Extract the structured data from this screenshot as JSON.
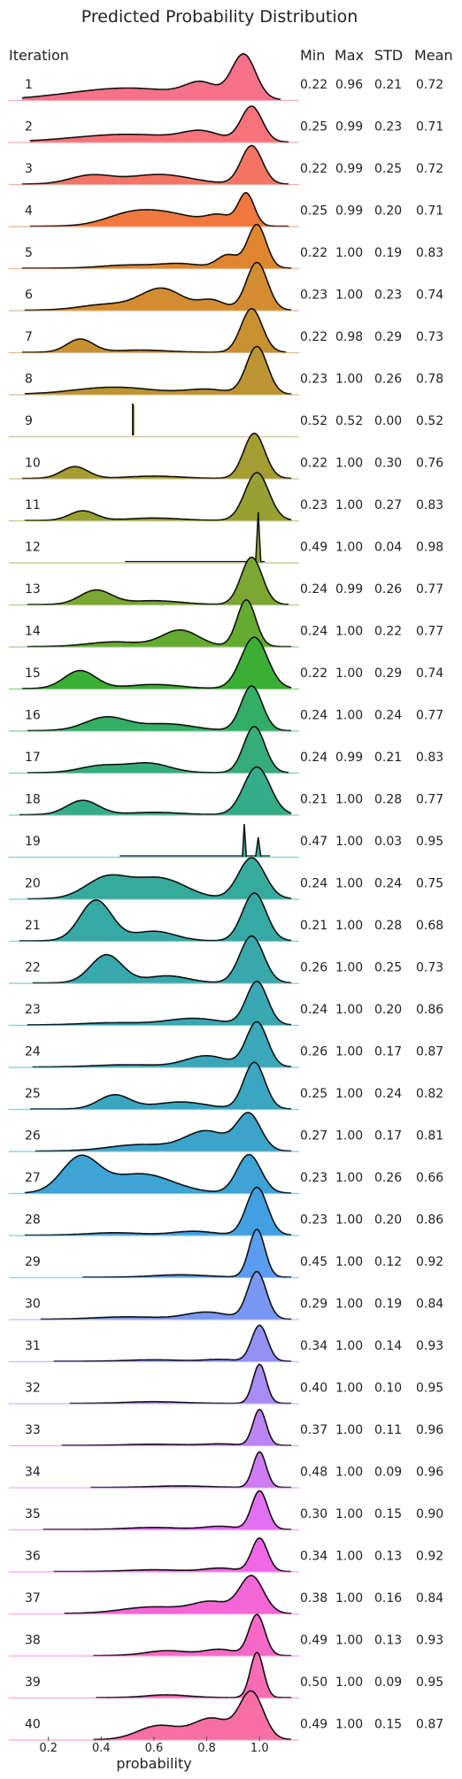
{
  "chart_data": {
    "type": "ridgeline",
    "title": "Predicted Probability Distribution",
    "xlabel": "probability",
    "xlim": [
      0.05,
      1.15
    ],
    "xticks": [
      0.2,
      0.4,
      0.6,
      0.8,
      1.0
    ],
    "xtick_labels": [
      "0.2",
      "0.4",
      "0.6",
      "0.8",
      "1.0"
    ],
    "row_header": "Iteration",
    "stat_columns": [
      "Min",
      "Max",
      "STD",
      "Mean"
    ],
    "rows": [
      {
        "label": "1",
        "min": "0.22",
        "max": "0.96",
        "std": "0.21",
        "mean": "0.72",
        "color": "#f77189"
      },
      {
        "label": "2",
        "min": "0.25",
        "max": "0.99",
        "std": "0.23",
        "mean": "0.71",
        "color": "#f67379"
      },
      {
        "label": "3",
        "min": "0.22",
        "max": "0.99",
        "std": "0.25",
        "mean": "0.72",
        "color": "#f47565"
      },
      {
        "label": "4",
        "min": "0.25",
        "max": "0.99",
        "std": "0.20",
        "mean": "0.71",
        "color": "#f0783f"
      },
      {
        "label": "5",
        "min": "0.22",
        "max": "1.00",
        "std": "0.19",
        "mean": "0.83",
        "color": "#e0852f"
      },
      {
        "label": "6",
        "min": "0.23",
        "max": "1.00",
        "std": "0.23",
        "mean": "0.74",
        "color": "#d38c32"
      },
      {
        "label": "7",
        "min": "0.22",
        "max": "0.98",
        "std": "0.29",
        "mean": "0.73",
        "color": "#c79132"
      },
      {
        "label": "8",
        "min": "0.23",
        "max": "1.00",
        "std": "0.26",
        "mean": "0.78",
        "color": "#bc9532"
      },
      {
        "label": "9",
        "min": "0.52",
        "max": "0.52",
        "std": "0.00",
        "mean": "0.52",
        "color": "#b19932"
      },
      {
        "label": "10",
        "min": "0.22",
        "max": "1.00",
        "std": "0.30",
        "mean": "0.76",
        "color": "#a59c32"
      },
      {
        "label": "11",
        "min": "0.23",
        "max": "1.00",
        "std": "0.27",
        "mean": "0.83",
        "color": "#99a032"
      },
      {
        "label": "12",
        "min": "0.49",
        "max": "1.00",
        "std": "0.04",
        "mean": "0.98",
        "color": "#8ca332"
      },
      {
        "label": "13",
        "min": "0.24",
        "max": "0.99",
        "std": "0.26",
        "mean": "0.77",
        "color": "#7ba732"
      },
      {
        "label": "14",
        "min": "0.24",
        "max": "1.00",
        "std": "0.22",
        "mean": "0.77",
        "color": "#64ab32"
      },
      {
        "label": "15",
        "min": "0.22",
        "max": "1.00",
        "std": "0.29",
        "mean": "0.74",
        "color": "#3aaf33"
      },
      {
        "label": "16",
        "min": "0.24",
        "max": "1.00",
        "std": "0.24",
        "mean": "0.77",
        "color": "#33ae66"
      },
      {
        "label": "17",
        "min": "0.24",
        "max": "0.99",
        "std": "0.21",
        "mean": "0.83",
        "color": "#34ad7b"
      },
      {
        "label": "18",
        "min": "0.21",
        "max": "1.00",
        "std": "0.28",
        "mean": "0.77",
        "color": "#35ac89"
      },
      {
        "label": "19",
        "min": "0.47",
        "max": "1.00",
        "std": "0.03",
        "mean": "0.95",
        "color": "#35ab94"
      },
      {
        "label": "20",
        "min": "0.24",
        "max": "1.00",
        "std": "0.24",
        "mean": "0.75",
        "color": "#36aa9d"
      },
      {
        "label": "21",
        "min": "0.21",
        "max": "1.00",
        "std": "0.28",
        "mean": "0.68",
        "color": "#37a9a5"
      },
      {
        "label": "22",
        "min": "0.26",
        "max": "1.00",
        "std": "0.25",
        "mean": "0.73",
        "color": "#38a8ac"
      },
      {
        "label": "23",
        "min": "0.24",
        "max": "1.00",
        "std": "0.20",
        "mean": "0.86",
        "color": "#39a8b3"
      },
      {
        "label": "24",
        "min": "0.26",
        "max": "1.00",
        "std": "0.17",
        "mean": "0.87",
        "color": "#3aa7ba"
      },
      {
        "label": "25",
        "min": "0.25",
        "max": "1.00",
        "std": "0.24",
        "mean": "0.82",
        "color": "#3ba6c2"
      },
      {
        "label": "26",
        "min": "0.27",
        "max": "1.00",
        "std": "0.17",
        "mean": "0.81",
        "color": "#3ca4ca"
      },
      {
        "label": "27",
        "min": "0.23",
        "max": "1.00",
        "std": "0.26",
        "mean": "0.66",
        "color": "#3ea3d5"
      },
      {
        "label": "28",
        "min": "0.23",
        "max": "1.00",
        "std": "0.20",
        "mean": "0.86",
        "color": "#41a0e2"
      },
      {
        "label": "29",
        "min": "0.45",
        "max": "1.00",
        "std": "0.12",
        "mean": "0.92",
        "color": "#599cf0"
      },
      {
        "label": "30",
        "min": "0.29",
        "max": "1.00",
        "std": "0.19",
        "mean": "0.84",
        "color": "#7b97f4"
      },
      {
        "label": "31",
        "min": "0.34",
        "max": "1.00",
        "std": "0.14",
        "mean": "0.93",
        "color": "#9491f4"
      },
      {
        "label": "32",
        "min": "0.40",
        "max": "1.00",
        "std": "0.10",
        "mean": "0.95",
        "color": "#a98bf4"
      },
      {
        "label": "33",
        "min": "0.37",
        "max": "1.00",
        "std": "0.11",
        "mean": "0.96",
        "color": "#bd84f4"
      },
      {
        "label": "34",
        "min": "0.48",
        "max": "1.00",
        "std": "0.09",
        "mean": "0.96",
        "color": "#cf7cf4"
      },
      {
        "label": "35",
        "min": "0.30",
        "max": "1.00",
        "std": "0.15",
        "mean": "0.90",
        "color": "#e271f2"
      },
      {
        "label": "36",
        "min": "0.34",
        "max": "1.00",
        "std": "0.13",
        "mean": "0.92",
        "color": "#f067e8"
      },
      {
        "label": "37",
        "min": "0.38",
        "max": "1.00",
        "std": "0.16",
        "mean": "0.84",
        "color": "#f566d7"
      },
      {
        "label": "38",
        "min": "0.49",
        "max": "1.00",
        "std": "0.13",
        "mean": "0.93",
        "color": "#f669c6"
      },
      {
        "label": "39",
        "min": "0.50",
        "max": "1.00",
        "std": "0.09",
        "mean": "0.95",
        "color": "#f66db6"
      },
      {
        "label": "40",
        "min": "0.49",
        "max": "1.00",
        "std": "0.15",
        "mean": "0.87",
        "color": "#f76fa3"
      }
    ]
  }
}
